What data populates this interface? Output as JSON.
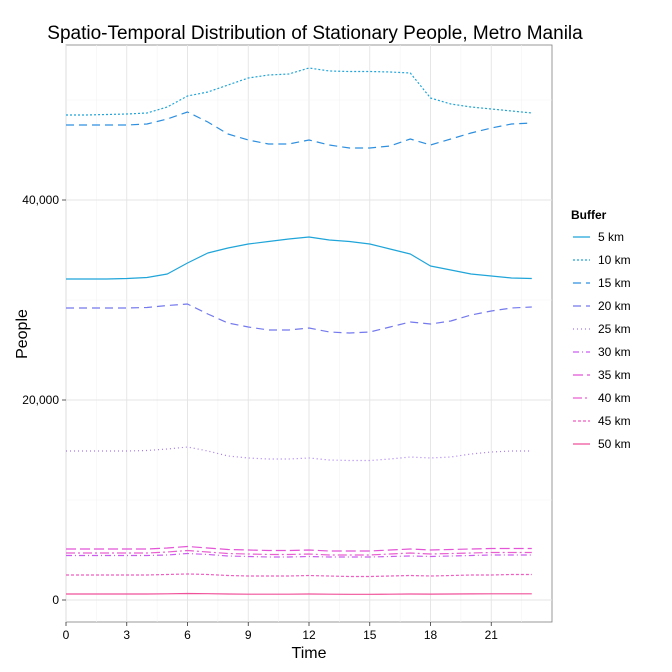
{
  "chart_data": {
    "type": "line",
    "title": "Spatio-Temporal Distribution of Stationary People, Metro Manila",
    "xlabel": "Time",
    "ylabel": "People",
    "xlim": [
      0,
      24
    ],
    "ylim": [
      -2200,
      55500
    ],
    "x_ticks": [
      0,
      3,
      6,
      9,
      12,
      15,
      18,
      21
    ],
    "x_tick_labels": [
      "0",
      "3",
      "6",
      "9",
      "12",
      "15",
      "18",
      "21"
    ],
    "y_ticks": [
      0,
      20000,
      40000
    ],
    "y_tick_labels": [
      "0",
      "20,000",
      "40,000"
    ],
    "grid": true,
    "legend_title": "Buffer",
    "legend_position": "right",
    "x": [
      0,
      1,
      2,
      3,
      4,
      5,
      6,
      7,
      8,
      9,
      10,
      11,
      12,
      13,
      14,
      15,
      16,
      17,
      18,
      19,
      20,
      21,
      22,
      23
    ],
    "series": [
      {
        "name": "5 km",
        "color": "#1fa5d9",
        "dash": "solid",
        "values": [
          32100,
          32100,
          32100,
          32150,
          32250,
          32600,
          33700,
          34700,
          35200,
          35600,
          35850,
          36100,
          36300,
          36000,
          35850,
          35600,
          35100,
          34600,
          33400,
          33000,
          32600,
          32400,
          32200,
          32150
        ]
      },
      {
        "name": "10 km",
        "color": "#1fa5d9",
        "dash": "2,2",
        "values": [
          48500,
          48500,
          48550,
          48600,
          48700,
          49300,
          50400,
          50800,
          51500,
          52200,
          52500,
          52600,
          53200,
          52900,
          52850,
          52850,
          52800,
          52700,
          50200,
          49600,
          49300,
          49100,
          48900,
          48700
        ]
      },
      {
        "name": "15 km",
        "color": "#2d8fe0",
        "dash": "8,5",
        "values": [
          47500,
          47500,
          47500,
          47500,
          47600,
          48100,
          48800,
          47800,
          46600,
          46000,
          45600,
          45600,
          46000,
          45500,
          45200,
          45200,
          45400,
          46100,
          45500,
          46100,
          46700,
          47200,
          47600,
          47700
        ]
      },
      {
        "name": "20 km",
        "color": "#7479ee",
        "dash": "8,5",
        "values": [
          29200,
          29200,
          29200,
          29200,
          29250,
          29450,
          29600,
          28600,
          27700,
          27300,
          27000,
          27000,
          27200,
          26800,
          26700,
          26800,
          27300,
          27800,
          27600,
          27900,
          28500,
          28900,
          29200,
          29300
        ]
      },
      {
        "name": "25 km",
        "color": "#a779ee",
        "dash": "1,3",
        "values": [
          14900,
          14900,
          14900,
          14900,
          14950,
          15100,
          15300,
          14900,
          14400,
          14200,
          14100,
          14100,
          14200,
          14000,
          13950,
          13950,
          14100,
          14300,
          14200,
          14300,
          14600,
          14800,
          14900,
          14900
        ]
      },
      {
        "name": "30 km",
        "color": "#cc5cf0",
        "dash": "6,3,1,3",
        "values": [
          4450,
          4450,
          4450,
          4450,
          4450,
          4500,
          4650,
          4550,
          4400,
          4350,
          4300,
          4300,
          4350,
          4300,
          4300,
          4300,
          4350,
          4400,
          4350,
          4400,
          4450,
          4500,
          4500,
          4500
        ]
      },
      {
        "name": "35 km",
        "color": "#e354d6",
        "dash": "10,4",
        "values": [
          5100,
          5100,
          5100,
          5100,
          5100,
          5200,
          5350,
          5200,
          5050,
          5000,
          4950,
          4950,
          5000,
          4900,
          4900,
          4900,
          5000,
          5100,
          5000,
          5050,
          5100,
          5150,
          5150,
          5150
        ]
      },
      {
        "name": "40 km",
        "color": "#e95fd0",
        "dash": "9,3,2,3",
        "values": [
          4700,
          4700,
          4700,
          4700,
          4700,
          4800,
          4950,
          4800,
          4650,
          4600,
          4550,
          4550,
          4600,
          4500,
          4500,
          4500,
          4600,
          4700,
          4600,
          4650,
          4700,
          4750,
          4750,
          4750
        ]
      },
      {
        "name": "45 km",
        "color": "#f05cc2",
        "dash": "3,2",
        "values": [
          2500,
          2500,
          2500,
          2500,
          2500,
          2550,
          2600,
          2550,
          2450,
          2400,
          2400,
          2400,
          2450,
          2400,
          2350,
          2350,
          2400,
          2450,
          2400,
          2450,
          2500,
          2500,
          2550,
          2550
        ]
      },
      {
        "name": "50 km",
        "color": "#f0529a",
        "dash": "solid",
        "values": [
          600,
          600,
          600,
          600,
          600,
          620,
          650,
          630,
          600,
          580,
          580,
          580,
          600,
          580,
          570,
          570,
          580,
          600,
          590,
          600,
          610,
          620,
          620,
          620
        ]
      }
    ]
  }
}
